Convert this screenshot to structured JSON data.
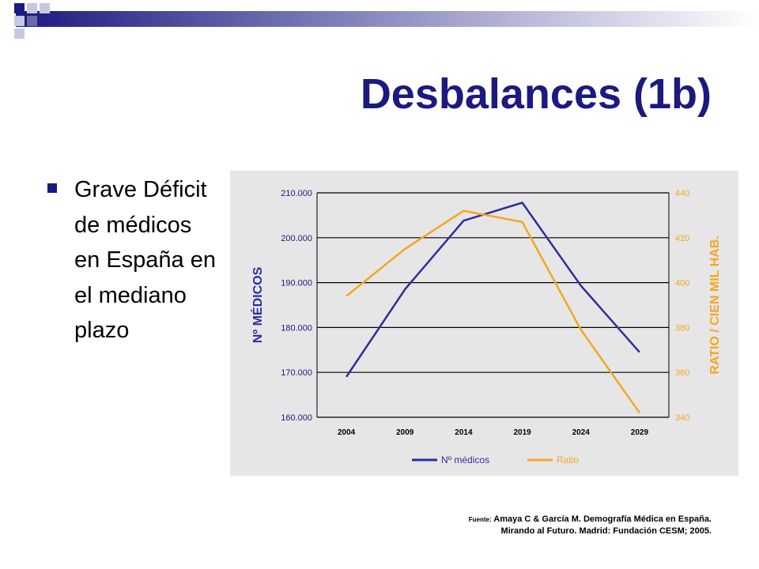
{
  "slide": {
    "title": "Desbalances (1b)",
    "bullet": "Grave Déficit de médicos en España en el mediano plazo",
    "source_prefix": "Fuente:",
    "source_line1": "Amaya C & García M. Demografía Médica en España.",
    "source_line2": "Mirando al Futuro. Madrid: Fundación CESM; 2005."
  },
  "colors": {
    "title": "#1a1a80",
    "series_medicos": "#2e2e9e",
    "series_ratio": "#f5a623",
    "chart_bg": "#e6e6e6"
  },
  "chart_data": {
    "type": "line",
    "categories": [
      "2004",
      "2009",
      "2014",
      "2019",
      "2024",
      "2029"
    ],
    "ylabel": "Nº MÉDICOS",
    "y2label": "RATIO / CIEN MIL HAB.",
    "ylim": [
      160000,
      210000
    ],
    "y2lim": [
      340,
      440
    ],
    "yticks": [
      "160.000",
      "170.000",
      "180.000",
      "190.000",
      "200.000",
      "210.000"
    ],
    "y2ticks": [
      "340",
      "360",
      "380",
      "400",
      "420",
      "440"
    ],
    "grid": true,
    "legend_position": "bottom",
    "series": [
      {
        "name": "Nº médicos",
        "axis": "left",
        "values": [
          169000,
          188500,
          203800,
          207800,
          189300,
          174500
        ]
      },
      {
        "name": "Ratio",
        "axis": "right",
        "values": [
          394,
          415,
          432,
          427,
          379,
          342
        ]
      }
    ]
  }
}
